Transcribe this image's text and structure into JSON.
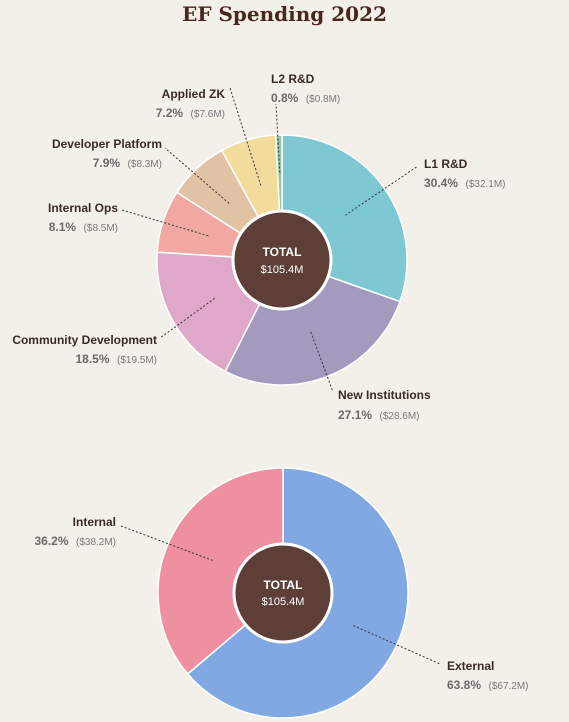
{
  "title": "EF Spending 2022",
  "chart_data": [
    {
      "type": "pie",
      "center_label": "TOTAL",
      "center_value": "$105.4M",
      "slices": [
        {
          "name": "L1 R&D",
          "percent": 30.4,
          "percent_label": "30.4%",
          "amount_label": "($32.1M)",
          "color": "#7ec8d3"
        },
        {
          "name": "New Institutions",
          "percent": 27.1,
          "percent_label": "27.1%",
          "amount_label": "($28.6M)",
          "color": "#a39bbd"
        },
        {
          "name": "Community Development",
          "percent": 18.5,
          "percent_label": "18.5%",
          "amount_label": "($19.5M)",
          "color": "#e0a8c8"
        },
        {
          "name": "Internal Ops",
          "percent": 8.1,
          "percent_label": "8.1%",
          "amount_label": "($8.5M)",
          "color": "#f1a8a2"
        },
        {
          "name": "Developer Platform",
          "percent": 7.9,
          "percent_label": "7.9%",
          "amount_label": "($8.3M)",
          "color": "#e0c3a5"
        },
        {
          "name": "Applied ZK",
          "percent": 7.2,
          "percent_label": "7.2%",
          "amount_label": "($7.6M)",
          "color": "#f1dc9c"
        },
        {
          "name": "L2 R&D",
          "percent": 0.8,
          "percent_label": "0.8%",
          "amount_label": "($0.8M)",
          "color": "#8fc6a0"
        }
      ]
    },
    {
      "type": "pie",
      "center_label": "TOTAL",
      "center_value": "$105.4M",
      "slices": [
        {
          "name": "External",
          "percent": 63.8,
          "percent_label": "63.8%",
          "amount_label": "($67.2M)",
          "color": "#81a8e2"
        },
        {
          "name": "Internal",
          "percent": 36.2,
          "percent_label": "36.2%",
          "amount_label": "($38.2M)",
          "color": "#ef90a2"
        }
      ]
    }
  ],
  "colors": {
    "background": "#f3f0ea",
    "title": "#4a2620",
    "center_circle": "#5d3f38",
    "leader_line": "#333333"
  }
}
